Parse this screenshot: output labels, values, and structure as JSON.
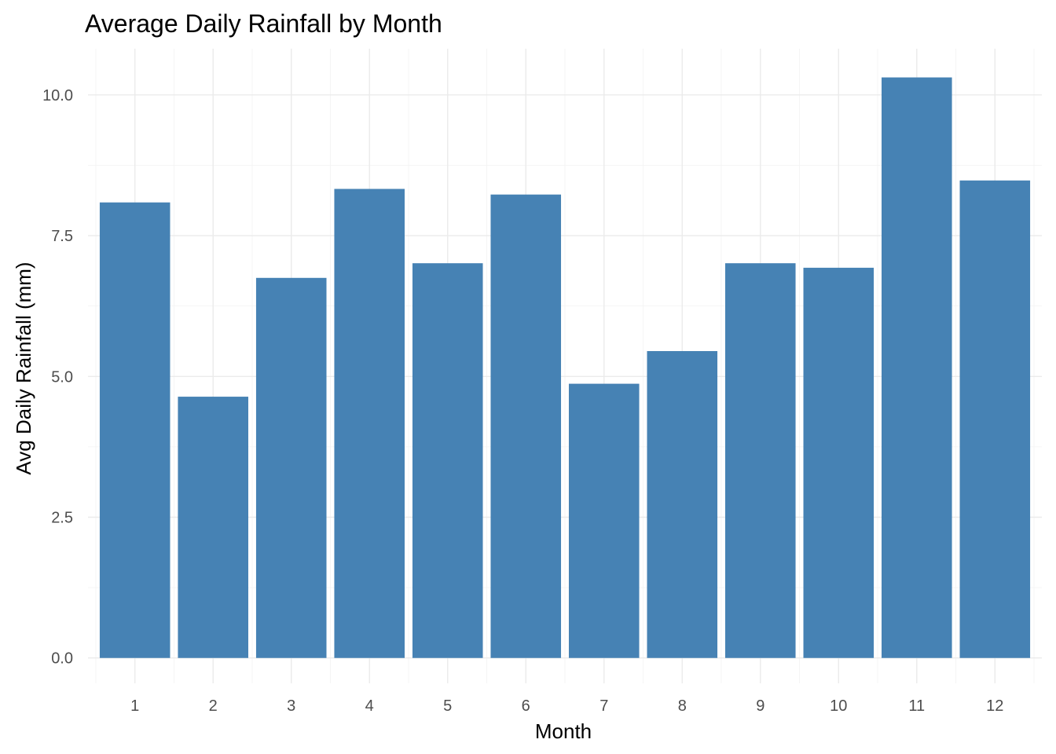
{
  "chart_data": {
    "type": "bar",
    "title": "Average Daily Rainfall by Month",
    "xlabel": "Month",
    "ylabel": "Avg Daily Rainfall (mm)",
    "categories": [
      "1",
      "2",
      "3",
      "4",
      "5",
      "6",
      "7",
      "8",
      "9",
      "10",
      "11",
      "12"
    ],
    "values": [
      8.09,
      4.64,
      6.75,
      8.33,
      7.01,
      8.23,
      4.87,
      5.45,
      7.01,
      6.93,
      10.31,
      8.48
    ],
    "ylim": [
      -0.45,
      10.82
    ],
    "yticks": [
      0.0,
      2.5,
      5.0,
      7.5,
      10.0
    ],
    "ytick_labels": [
      "0.0",
      "2.5",
      "5.0",
      "7.5",
      "10.0"
    ],
    "bar_color": "#4682b4",
    "grid": true,
    "legend": "none"
  }
}
